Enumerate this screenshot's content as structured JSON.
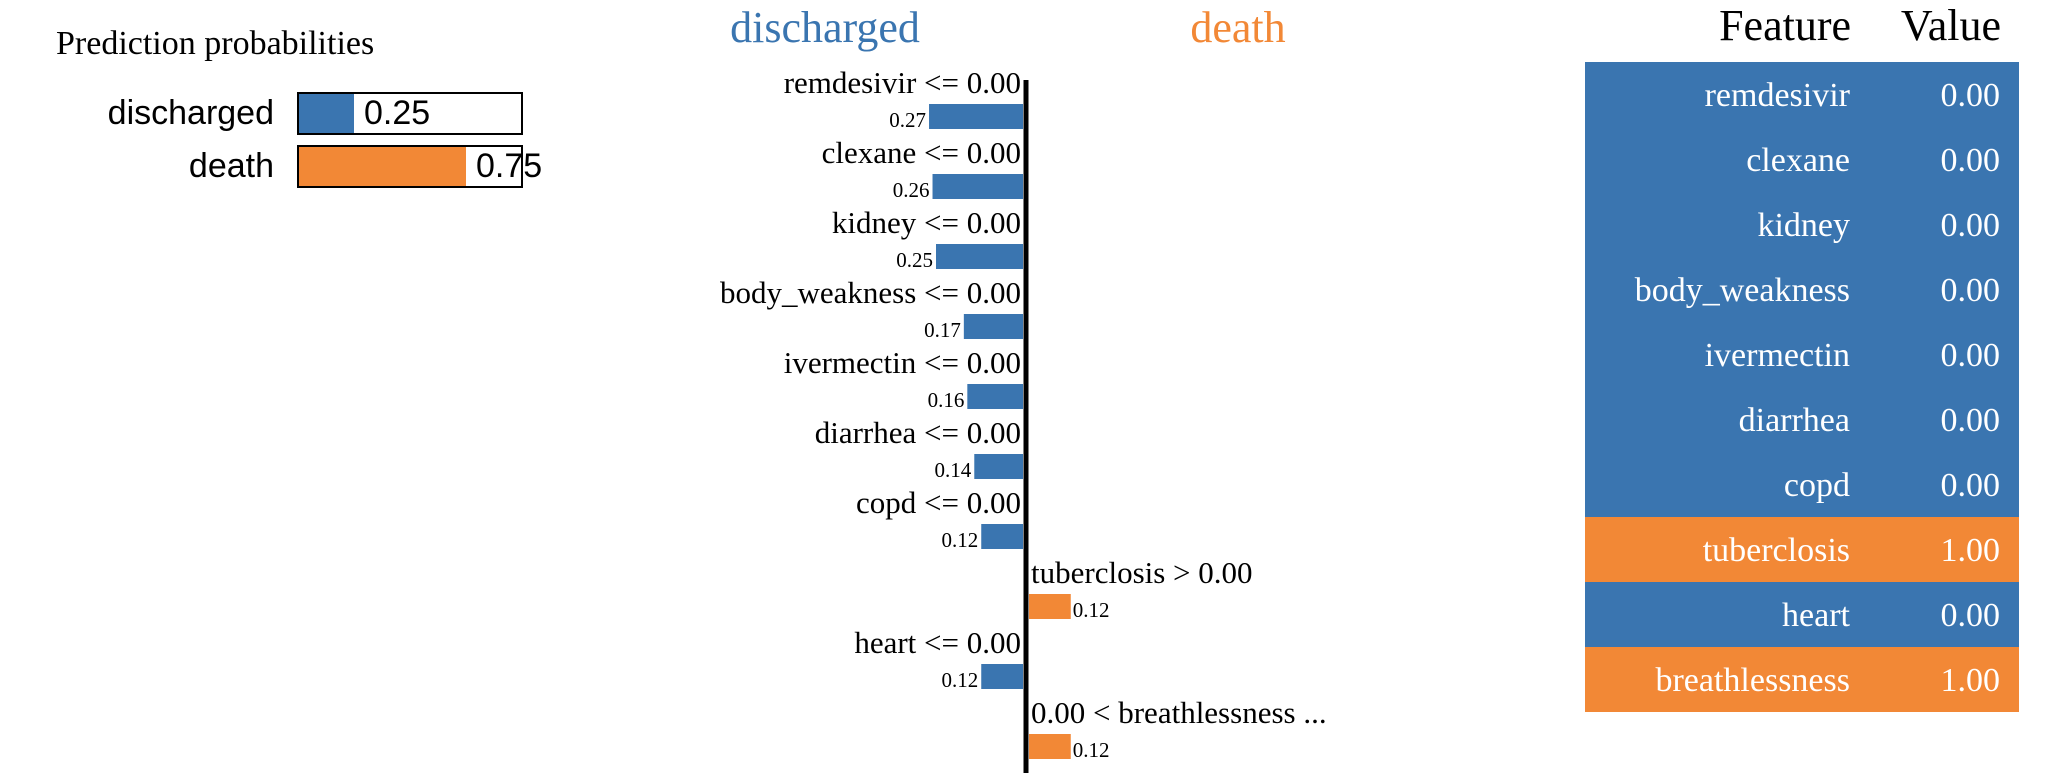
{
  "colors": {
    "discharged": "#3a75b0",
    "death": "#f28836",
    "text": "#000000",
    "white": "#ffffff"
  },
  "chart_data": [
    {
      "type": "bar",
      "title": "Prediction probabilities",
      "categories": [
        "discharged",
        "death"
      ],
      "values": [
        0.25,
        0.75
      ],
      "value_labels": [
        "0.25",
        "0.75"
      ],
      "xlim": [
        0,
        1
      ]
    },
    {
      "type": "bar",
      "orientation": "horizontal",
      "class_labels": [
        "discharged",
        "death"
      ],
      "features": [
        {
          "label": "remdesivir <= 0.00",
          "value": 0.27,
          "value_label": "0.27",
          "class": "discharged"
        },
        {
          "label": "clexane <= 0.00",
          "value": 0.26,
          "value_label": "0.26",
          "class": "discharged"
        },
        {
          "label": "kidney <= 0.00",
          "value": 0.25,
          "value_label": "0.25",
          "class": "discharged"
        },
        {
          "label": "body_weakness <= 0.00",
          "value": 0.17,
          "value_label": "0.17",
          "class": "discharged"
        },
        {
          "label": "ivermectin <= 0.00",
          "value": 0.16,
          "value_label": "0.16",
          "class": "discharged"
        },
        {
          "label": "diarrhea <= 0.00",
          "value": 0.14,
          "value_label": "0.14",
          "class": "discharged"
        },
        {
          "label": "copd <= 0.00",
          "value": 0.12,
          "value_label": "0.12",
          "class": "discharged"
        },
        {
          "label": "tuberclosis > 0.00",
          "value": 0.12,
          "value_label": "0.12",
          "class": "death"
        },
        {
          "label": "heart <= 0.00",
          "value": 0.12,
          "value_label": "0.12",
          "class": "discharged"
        },
        {
          "label": "0.00 < breathlessness ...",
          "value": 0.12,
          "value_label": "0.12",
          "class": "death"
        }
      ]
    },
    {
      "type": "table",
      "headers": [
        "Feature",
        "Value"
      ],
      "rows": [
        {
          "feature": "remdesivir",
          "value": "0.00",
          "class": "discharged"
        },
        {
          "feature": "clexane",
          "value": "0.00",
          "class": "discharged"
        },
        {
          "feature": "kidney",
          "value": "0.00",
          "class": "discharged"
        },
        {
          "feature": "body_weakness",
          "value": "0.00",
          "class": "discharged"
        },
        {
          "feature": "ivermectin",
          "value": "0.00",
          "class": "discharged"
        },
        {
          "feature": "diarrhea",
          "value": "0.00",
          "class": "discharged"
        },
        {
          "feature": "copd",
          "value": "0.00",
          "class": "discharged"
        },
        {
          "feature": "tuberclosis",
          "value": "1.00",
          "class": "death"
        },
        {
          "feature": "heart",
          "value": "0.00",
          "class": "discharged"
        },
        {
          "feature": "breathlessness",
          "value": "1.00",
          "class": "death"
        }
      ]
    }
  ]
}
